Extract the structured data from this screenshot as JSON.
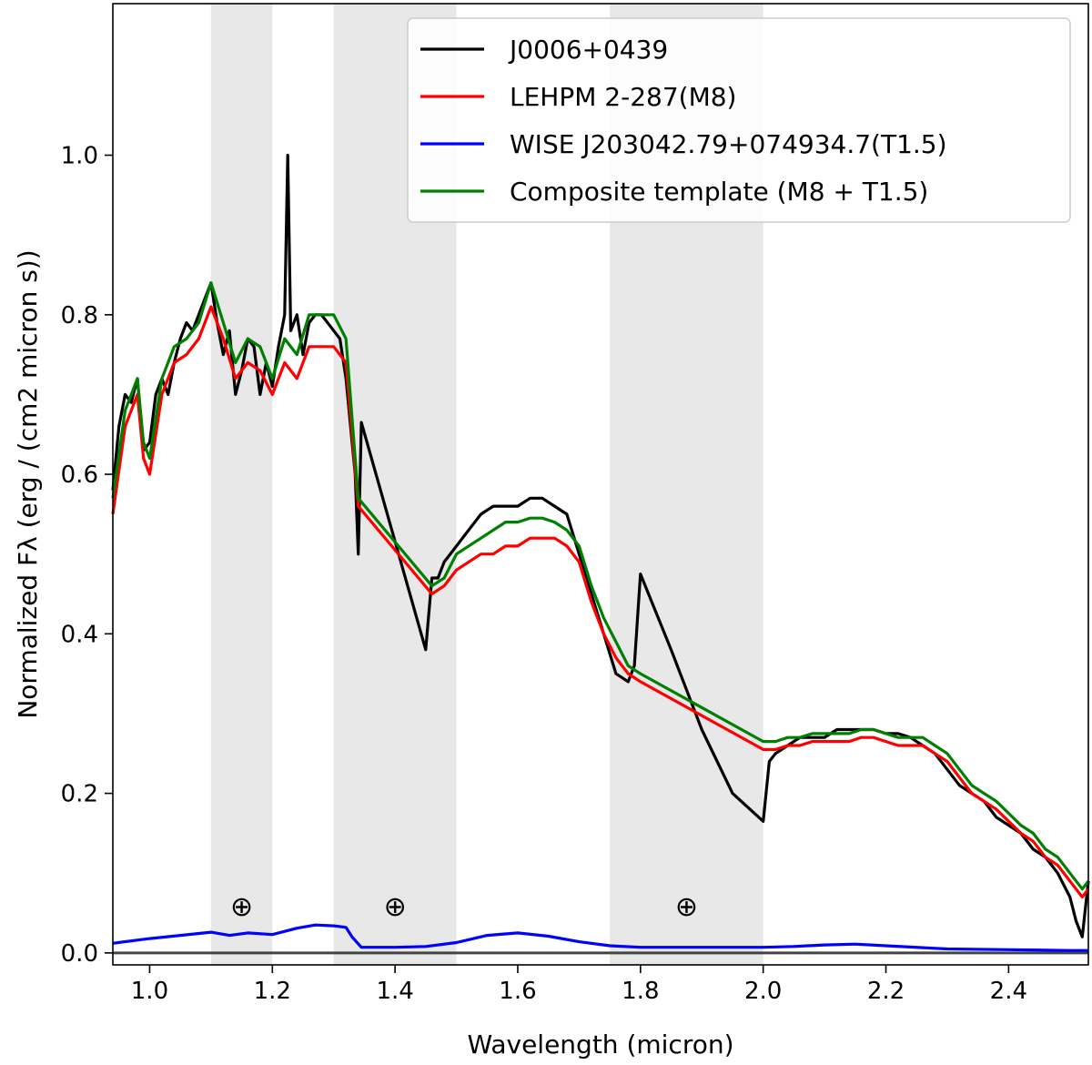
{
  "chart_data": {
    "type": "line",
    "xlabel": "Wavelength (micron)",
    "ylabel": "Normalized Fλ (erg / (cm2 micron s))",
    "xlim": [
      0.94,
      2.53
    ],
    "ylim": [
      -0.015,
      1.19
    ],
    "x_ticks": [
      "1.0",
      "1.2",
      "1.4",
      "1.6",
      "1.8",
      "2.0",
      "2.2",
      "2.4"
    ],
    "y_ticks": [
      "0.0",
      "0.2",
      "0.4",
      "0.6",
      "0.8",
      "1.0"
    ],
    "grid": false,
    "legend_location": "top-right",
    "telluric_bands": [
      {
        "from": 1.1,
        "to": 1.2,
        "marker": "⊕",
        "marker_x": 1.15
      },
      {
        "from": 1.3,
        "to": 1.5,
        "marker": "⊕",
        "marker_x": 1.4
      },
      {
        "from": 1.75,
        "to": 2.0,
        "marker": "⊕",
        "marker_x": 1.875
      }
    ],
    "telluric_marker_y": 0.058,
    "series": [
      {
        "name": "J0006+0439",
        "color": "#000000",
        "x": [
          0.94,
          0.95,
          0.96,
          0.97,
          0.98,
          0.99,
          1.0,
          1.01,
          1.02,
          1.03,
          1.04,
          1.05,
          1.06,
          1.07,
          1.08,
          1.09,
          1.1,
          1.11,
          1.12,
          1.13,
          1.14,
          1.15,
          1.16,
          1.17,
          1.18,
          1.19,
          1.2,
          1.21,
          1.22,
          1.225,
          1.23,
          1.24,
          1.25,
          1.26,
          1.27,
          1.28,
          1.29,
          1.3,
          1.31,
          1.32,
          1.33,
          1.335,
          1.34,
          1.345,
          1.45,
          1.46,
          1.47,
          1.48,
          1.5,
          1.52,
          1.54,
          1.56,
          1.58,
          1.6,
          1.62,
          1.64,
          1.66,
          1.68,
          1.7,
          1.72,
          1.74,
          1.76,
          1.78,
          1.79,
          1.8,
          1.85,
          1.9,
          1.95,
          2.0,
          2.01,
          2.02,
          2.04,
          2.06,
          2.08,
          2.1,
          2.12,
          2.14,
          2.16,
          2.18,
          2.2,
          2.22,
          2.24,
          2.26,
          2.28,
          2.3,
          2.32,
          2.34,
          2.36,
          2.38,
          2.4,
          2.42,
          2.44,
          2.46,
          2.48,
          2.5,
          2.51,
          2.52,
          2.53
        ],
        "y": [
          0.58,
          0.66,
          0.7,
          0.69,
          0.72,
          0.63,
          0.64,
          0.7,
          0.72,
          0.7,
          0.74,
          0.77,
          0.79,
          0.78,
          0.8,
          0.82,
          0.84,
          0.79,
          0.75,
          0.78,
          0.7,
          0.73,
          0.77,
          0.76,
          0.7,
          0.74,
          0.71,
          0.76,
          0.8,
          1.0,
          0.78,
          0.8,
          0.75,
          0.79,
          0.8,
          0.8,
          0.79,
          0.78,
          0.77,
          0.72,
          0.64,
          0.6,
          0.5,
          0.665,
          0.38,
          0.47,
          0.47,
          0.49,
          0.51,
          0.53,
          0.55,
          0.56,
          0.56,
          0.56,
          0.57,
          0.57,
          0.56,
          0.55,
          0.5,
          0.45,
          0.4,
          0.35,
          0.34,
          0.36,
          0.475,
          0.38,
          0.28,
          0.2,
          0.165,
          0.24,
          0.25,
          0.26,
          0.27,
          0.27,
          0.27,
          0.28,
          0.28,
          0.28,
          0.28,
          0.275,
          0.275,
          0.27,
          0.26,
          0.25,
          0.23,
          0.21,
          0.2,
          0.19,
          0.17,
          0.16,
          0.15,
          0.13,
          0.12,
          0.1,
          0.07,
          0.04,
          0.02,
          0.09
        ]
      },
      {
        "name": "LEHPM 2-287(M8)",
        "color": "#ff0000",
        "x": [
          0.94,
          0.96,
          0.98,
          0.99,
          1.0,
          1.02,
          1.04,
          1.06,
          1.08,
          1.1,
          1.12,
          1.14,
          1.16,
          1.18,
          1.2,
          1.22,
          1.24,
          1.26,
          1.28,
          1.3,
          1.32,
          1.33,
          1.34,
          1.46,
          1.48,
          1.5,
          1.52,
          1.54,
          1.56,
          1.58,
          1.6,
          1.62,
          1.64,
          1.66,
          1.68,
          1.7,
          1.72,
          1.74,
          1.76,
          1.78,
          1.79,
          1.8,
          2.0,
          2.02,
          2.04,
          2.06,
          2.08,
          2.1,
          2.12,
          2.14,
          2.16,
          2.18,
          2.2,
          2.22,
          2.24,
          2.26,
          2.28,
          2.3,
          2.32,
          2.34,
          2.36,
          2.38,
          2.4,
          2.42,
          2.44,
          2.46,
          2.48,
          2.5,
          2.52,
          2.53
        ],
        "y": [
          0.55,
          0.66,
          0.7,
          0.62,
          0.6,
          0.7,
          0.74,
          0.75,
          0.77,
          0.81,
          0.77,
          0.72,
          0.74,
          0.73,
          0.7,
          0.74,
          0.72,
          0.76,
          0.76,
          0.76,
          0.74,
          0.65,
          0.56,
          0.45,
          0.46,
          0.48,
          0.49,
          0.5,
          0.5,
          0.51,
          0.51,
          0.52,
          0.52,
          0.52,
          0.51,
          0.49,
          0.44,
          0.4,
          0.37,
          0.35,
          0.345,
          0.34,
          0.255,
          0.255,
          0.26,
          0.26,
          0.265,
          0.265,
          0.265,
          0.265,
          0.27,
          0.27,
          0.265,
          0.26,
          0.26,
          0.26,
          0.25,
          0.24,
          0.22,
          0.2,
          0.19,
          0.18,
          0.165,
          0.15,
          0.14,
          0.12,
          0.11,
          0.09,
          0.07,
          0.08
        ]
      },
      {
        "name": "WISE J203042.79+074934.7(T1.5)",
        "color": "#0000ff",
        "x": [
          0.94,
          1.0,
          1.05,
          1.1,
          1.13,
          1.16,
          1.2,
          1.24,
          1.27,
          1.3,
          1.32,
          1.33,
          1.345,
          1.4,
          1.45,
          1.5,
          1.55,
          1.6,
          1.65,
          1.7,
          1.75,
          1.8,
          1.9,
          2.0,
          2.05,
          2.1,
          2.15,
          2.2,
          2.3,
          2.4,
          2.5,
          2.53
        ],
        "y": [
          0.012,
          0.018,
          0.022,
          0.026,
          0.022,
          0.025,
          0.023,
          0.031,
          0.035,
          0.034,
          0.032,
          0.02,
          0.007,
          0.007,
          0.008,
          0.013,
          0.022,
          0.025,
          0.021,
          0.014,
          0.009,
          0.007,
          0.007,
          0.007,
          0.008,
          0.01,
          0.011,
          0.009,
          0.005,
          0.004,
          0.003,
          0.003
        ]
      },
      {
        "name": "Composite template (M8 + T1.5)",
        "color": "#008000",
        "x": [
          0.94,
          0.96,
          0.98,
          0.99,
          1.0,
          1.02,
          1.04,
          1.06,
          1.08,
          1.1,
          1.12,
          1.14,
          1.16,
          1.18,
          1.2,
          1.22,
          1.24,
          1.26,
          1.28,
          1.3,
          1.32,
          1.33,
          1.34,
          1.46,
          1.48,
          1.5,
          1.52,
          1.54,
          1.56,
          1.58,
          1.6,
          1.62,
          1.64,
          1.66,
          1.68,
          1.7,
          1.72,
          1.74,
          1.76,
          1.78,
          1.79,
          1.8,
          2.0,
          2.02,
          2.04,
          2.06,
          2.08,
          2.1,
          2.12,
          2.14,
          2.16,
          2.18,
          2.2,
          2.22,
          2.24,
          2.26,
          2.28,
          2.3,
          2.32,
          2.34,
          2.36,
          2.38,
          2.4,
          2.42,
          2.44,
          2.46,
          2.48,
          2.5,
          2.52,
          2.53
        ],
        "y": [
          0.57,
          0.68,
          0.72,
          0.64,
          0.62,
          0.72,
          0.76,
          0.77,
          0.79,
          0.84,
          0.79,
          0.74,
          0.77,
          0.76,
          0.72,
          0.77,
          0.75,
          0.8,
          0.8,
          0.8,
          0.77,
          0.67,
          0.57,
          0.46,
          0.47,
          0.5,
          0.51,
          0.52,
          0.53,
          0.54,
          0.54,
          0.545,
          0.545,
          0.54,
          0.53,
          0.51,
          0.46,
          0.42,
          0.39,
          0.36,
          0.355,
          0.35,
          0.265,
          0.265,
          0.27,
          0.27,
          0.275,
          0.275,
          0.275,
          0.275,
          0.28,
          0.28,
          0.275,
          0.27,
          0.27,
          0.27,
          0.26,
          0.25,
          0.23,
          0.21,
          0.2,
          0.19,
          0.175,
          0.16,
          0.15,
          0.13,
          0.12,
          0.1,
          0.08,
          0.09
        ]
      }
    ]
  }
}
